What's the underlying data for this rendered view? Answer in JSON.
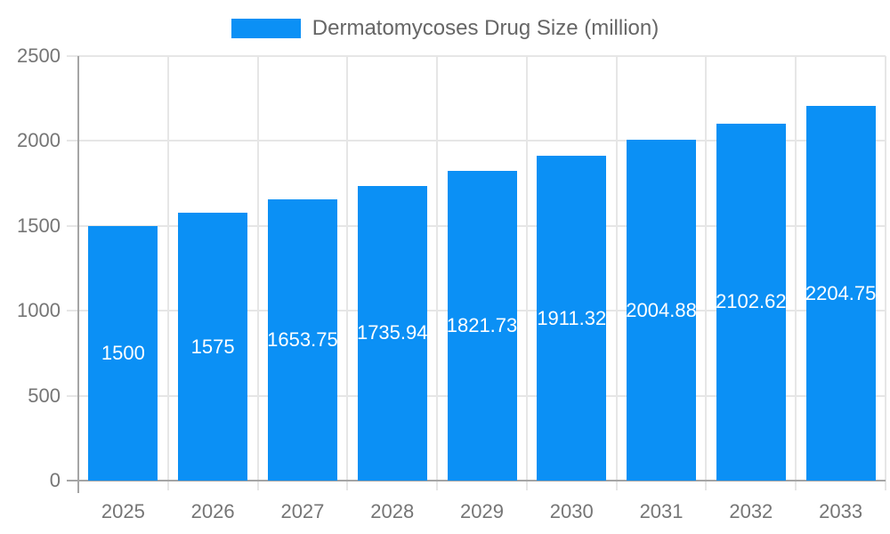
{
  "chart_data": {
    "type": "bar",
    "title": "",
    "legend": "Dermatomycoses Drug Size (million)",
    "legend_position": "top",
    "categories": [
      "2025",
      "2026",
      "2027",
      "2028",
      "2029",
      "2030",
      "2031",
      "2032",
      "2033"
    ],
    "series": [
      {
        "name": "Dermatomycoses Drug Size (million)",
        "values": [
          1500,
          1575,
          1653.75,
          1735.94,
          1821.73,
          1911.32,
          2004.88,
          2102.62,
          2204.75
        ],
        "value_labels": [
          "1500",
          "1575",
          "1653.75",
          "1735.94",
          "1821.73",
          "1911.32",
          "2004.88",
          "2102.62",
          "2204.75"
        ]
      }
    ],
    "xlabel": "",
    "ylabel": "",
    "ylim": [
      0,
      2500
    ],
    "yticks": [
      0,
      500,
      1000,
      1500,
      2000,
      2500
    ],
    "ytick_labels": [
      "0",
      "500",
      "1000",
      "1500",
      "2000",
      "2500"
    ],
    "grid": true,
    "colors": {
      "bar": "#0b90f5",
      "bar_value_text": "#ffffff",
      "gridline": "#e6e6e6",
      "axis_line": "#a5a5a5",
      "tick_text": "#757575",
      "legend_text": "#666666",
      "background": "#ffffff"
    }
  }
}
